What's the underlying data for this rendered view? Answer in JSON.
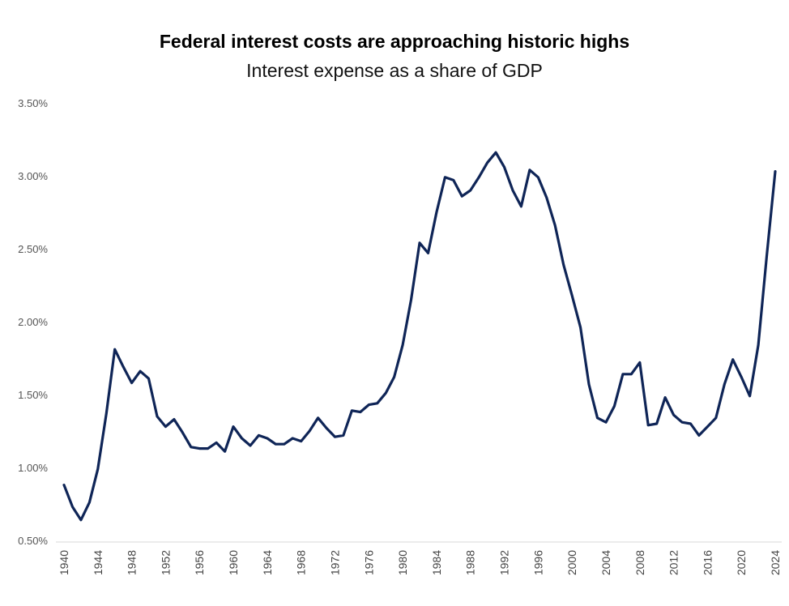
{
  "chart_data": {
    "type": "line",
    "title": "Federal interest costs are approaching historic highs",
    "subtitle": "Interest expense as a share of GDP",
    "xlabel": "",
    "ylabel": "",
    "ylim": [
      0.5,
      3.5
    ],
    "xlim": [
      1940,
      2024
    ],
    "y_tick_labels": [
      "0.50%",
      "1.00%",
      "1.50%",
      "2.00%",
      "2.50%",
      "3.00%",
      "3.50%"
    ],
    "x_tick_labels": [
      "1940",
      "1944",
      "1948",
      "1952",
      "1956",
      "1960",
      "1964",
      "1968",
      "1972",
      "1976",
      "1980",
      "1984",
      "1988",
      "1992",
      "1996",
      "2000",
      "2004",
      "2008",
      "2012",
      "2016",
      "2020",
      "2024"
    ],
    "grid": false,
    "legend": "none",
    "line_color": "#0f2557",
    "series": [
      {
        "x": [
          1940,
          1941,
          1942,
          1943,
          1944,
          1945,
          1946,
          1947,
          1948,
          1949,
          1950,
          1951,
          1952,
          1953,
          1954,
          1955,
          1956,
          1957,
          1958,
          1959,
          1960,
          1961,
          1962,
          1963,
          1964,
          1965,
          1966,
          1967,
          1968,
          1969,
          1970,
          1971,
          1972,
          1973,
          1974,
          1975,
          1976,
          1977,
          1978,
          1979,
          1980,
          1981,
          1982,
          1983,
          1984,
          1985,
          1986,
          1987,
          1988,
          1989,
          1990,
          1991,
          1992,
          1993,
          1994,
          1995,
          1996,
          1997,
          1998,
          1999,
          2000,
          2001,
          2002,
          2003,
          2004,
          2005,
          2006,
          2007,
          2008,
          2009,
          2010,
          2011,
          2012,
          2013,
          2014,
          2015,
          2016,
          2017,
          2018,
          2019,
          2020,
          2021,
          2022,
          2023,
          2024
        ],
        "values": [
          0.88,
          0.73,
          0.64,
          0.76,
          0.99,
          1.37,
          1.81,
          1.69,
          1.58,
          1.66,
          1.61,
          1.35,
          1.28,
          1.33,
          1.24,
          1.14,
          1.13,
          1.13,
          1.17,
          1.11,
          1.28,
          1.2,
          1.15,
          1.22,
          1.2,
          1.16,
          1.16,
          1.2,
          1.18,
          1.25,
          1.34,
          1.27,
          1.21,
          1.22,
          1.39,
          1.38,
          1.43,
          1.44,
          1.51,
          1.62,
          1.84,
          2.15,
          2.54,
          2.47,
          2.75,
          2.99,
          2.97,
          2.86,
          2.9,
          2.99,
          3.09,
          3.16,
          3.06,
          2.9,
          2.79,
          3.04,
          2.99,
          2.85,
          2.66,
          2.39,
          2.18,
          1.96,
          1.57,
          1.34,
          1.31,
          1.42,
          1.64,
          1.64,
          1.72,
          1.29,
          1.3,
          1.48,
          1.36,
          1.31,
          1.3,
          1.22,
          1.28,
          1.34,
          1.57,
          1.74,
          1.62,
          1.49,
          1.84,
          2.45,
          3.03
        ]
      }
    ]
  }
}
